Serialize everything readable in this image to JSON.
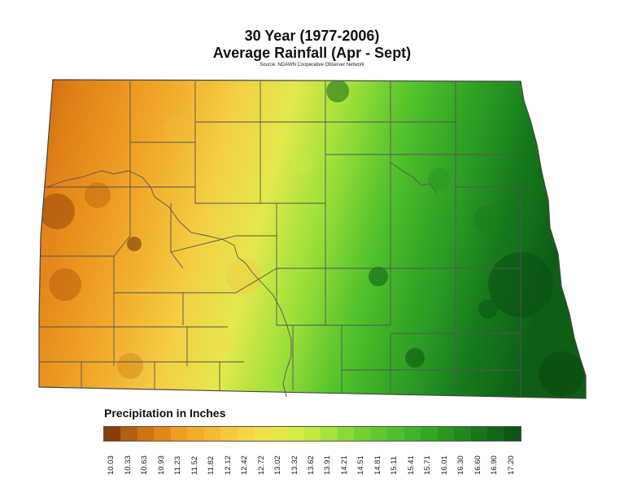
{
  "title": {
    "line1": "30 Year (1977-2006)",
    "line2": "Average Rainfall (Apr - Sept)",
    "source": "Source: NDAWN Cooperative Observer Network"
  },
  "legend": {
    "title": "Precipitation in Inches",
    "ticks": [
      "10.03",
      "10.33",
      "10.63",
      "10.93",
      "11.23",
      "11.52",
      "11.82",
      "12.12",
      "12.42",
      "12.72",
      "13.02",
      "13.32",
      "13.62",
      "13.91",
      "14.21",
      "14.51",
      "14.81",
      "15.11",
      "15.41",
      "15.71",
      "16.01",
      "16.30",
      "16.60",
      "16.90",
      "17.20"
    ],
    "colors": [
      "#8a3f08",
      "#b35e10",
      "#cc7414",
      "#e0891a",
      "#ee9c22",
      "#f2ab2a",
      "#f5b936",
      "#f6c842",
      "#f4d548",
      "#efe04a",
      "#e4e84a",
      "#d4ec45",
      "#bfe93f",
      "#a5e23a",
      "#8bd936",
      "#72d032",
      "#5ec82e",
      "#4ebf2b",
      "#40b428",
      "#34a625",
      "#2a9522",
      "#22851f",
      "#1a751c",
      "#136618",
      "#0d5614"
    ]
  },
  "map": {
    "region": "North Dakota",
    "gradient": "west-orange-to-east-green"
  }
}
